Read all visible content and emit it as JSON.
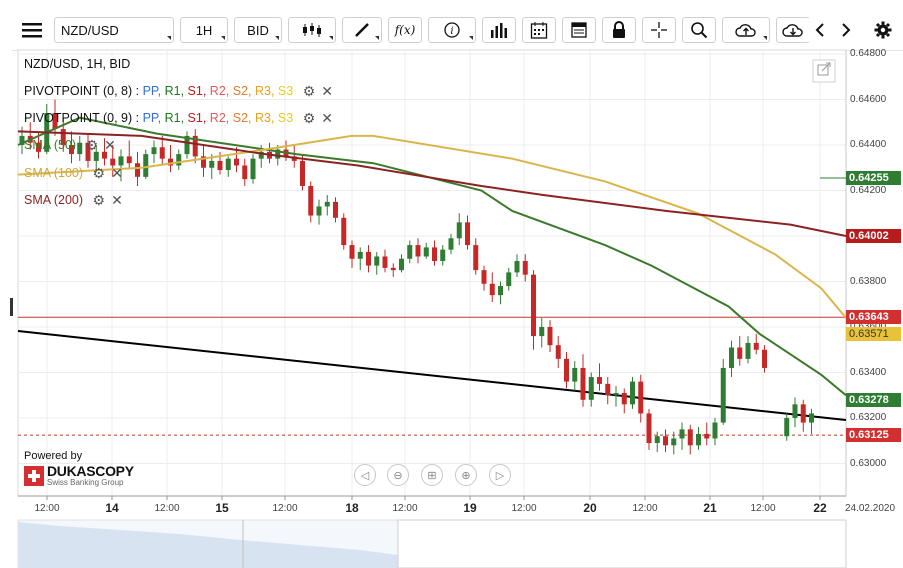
{
  "toolbar": {
    "symbol": "NZD/USD",
    "timeframe": "1H",
    "price_side": "BID",
    "function_label": "f(x)"
  },
  "legend": {
    "title": "NZD/USD, 1H, BID",
    "pivot1_name": "PIVOTPOINT (0, 8)",
    "pivot2_name": "PIVOTPOINT (0, 9)",
    "pivot_sep": ":",
    "pivot_levels": [
      "PP,",
      "R1,",
      "S1,",
      "R2,",
      "S2,",
      "R3,",
      "S3"
    ],
    "sma50": "SMA (50)",
    "sma100": "SMA (100)",
    "sma200": "SMA (200)"
  },
  "colors": {
    "candle_up": "#2e7d32",
    "candle_down": "#c62828",
    "sma50": "#3b7a2a",
    "sma100": "#d9b54a",
    "sma200": "#8b2323",
    "trendline": "#000000",
    "pivot_line": "#c0392b",
    "tag_green": "#2e7d32",
    "tag_darkred": "#b71c1c",
    "tag_red": "#d32f2f",
    "tag_yellow": "#e8c33a"
  },
  "brand": {
    "powered_by": "Powered by",
    "name": "DUKASCOPY",
    "tagline": "Swiss Banking Group"
  },
  "chart_data": {
    "type": "candlestick",
    "title": "NZD/USD, 1H, BID",
    "ylim": [
      0.629,
      0.648
    ],
    "y_ticks": [
      "0.64800",
      "0.64600",
      "0.64400",
      "0.64200",
      "0.64000",
      "0.63800",
      "0.63600",
      "0.63400",
      "0.63200",
      "0.63000"
    ],
    "x_ticks": [
      "12:00",
      "14",
      "12:00",
      "15",
      "12:00",
      "18",
      "12:00",
      "19",
      "12:00",
      "20",
      "12:00",
      "21",
      "12:00",
      "22",
      "24.02.2020"
    ],
    "price_tags": [
      {
        "label": "0.64255",
        "color": "green"
      },
      {
        "label": "0.64002",
        "color": "darkred"
      },
      {
        "label": "0.63643",
        "color": "red"
      },
      {
        "label": "0.63571",
        "color": "yellow"
      },
      {
        "label": "0.63278",
        "color": "green"
      },
      {
        "label": "0.63125",
        "color": "red"
      }
    ],
    "series": [
      {
        "name": "SMA (50)",
        "x": [
          0,
          20,
          45,
          90,
          115,
          150,
          160,
          190,
          205,
          230,
          240,
          260,
          268
        ],
        "y": [
          0.644,
          0.6452,
          0.6445,
          0.6436,
          0.6432,
          0.642,
          0.6411,
          0.6396,
          0.6387,
          0.6369,
          0.6357,
          0.6339,
          0.633
        ]
      },
      {
        "name": "SMA (100)",
        "x": [
          0,
          40,
          80,
          108,
          115,
          160,
          190,
          220,
          245,
          260,
          268
        ],
        "y": [
          0.6427,
          0.643,
          0.6438,
          0.6444,
          0.6444,
          0.6434,
          0.6424,
          0.641,
          0.6392,
          0.6377,
          0.6364
        ]
      },
      {
        "name": "SMA (200)",
        "x": [
          0,
          40,
          80,
          110,
          150,
          170,
          210,
          250,
          268
        ],
        "y": [
          0.6446,
          0.6444,
          0.6436,
          0.6431,
          0.6422,
          0.6418,
          0.6411,
          0.6405,
          0.64
        ]
      }
    ],
    "candles": [
      [
        0.644,
        0.6448,
        0.6436,
        0.6444
      ],
      [
        0.6444,
        0.645,
        0.6438,
        0.6441
      ],
      [
        0.6441,
        0.6446,
        0.6434,
        0.6437
      ],
      [
        0.6437,
        0.6458,
        0.6436,
        0.6454
      ],
      [
        0.6454,
        0.646,
        0.6444,
        0.6447
      ],
      [
        0.6447,
        0.6452,
        0.6437,
        0.644
      ],
      [
        0.644,
        0.6446,
        0.6432,
        0.6436
      ],
      [
        0.6436,
        0.6444,
        0.6433,
        0.6441
      ],
      [
        0.6441,
        0.6445,
        0.643,
        0.6433
      ],
      [
        0.6433,
        0.644,
        0.6428,
        0.6437
      ],
      [
        0.6437,
        0.6443,
        0.6431,
        0.6434
      ],
      [
        0.6434,
        0.644,
        0.6426,
        0.6431
      ],
      [
        0.6431,
        0.6438,
        0.6424,
        0.6435
      ],
      [
        0.6435,
        0.6442,
        0.643,
        0.6432
      ],
      [
        0.6432,
        0.6437,
        0.6422,
        0.6426
      ],
      [
        0.6426,
        0.6438,
        0.6425,
        0.6436
      ],
      [
        0.6436,
        0.6442,
        0.6432,
        0.6439
      ],
      [
        0.6439,
        0.6444,
        0.6431,
        0.6434
      ],
      [
        0.6434,
        0.644,
        0.6428,
        0.6431
      ],
      [
        0.6431,
        0.6438,
        0.6429,
        0.6436
      ],
      [
        0.6436,
        0.6446,
        0.6434,
        0.6444
      ],
      [
        0.6444,
        0.6447,
        0.6432,
        0.6435
      ],
      [
        0.6435,
        0.644,
        0.6426,
        0.643
      ],
      [
        0.643,
        0.6436,
        0.6425,
        0.6433
      ],
      [
        0.6433,
        0.6437,
        0.6427,
        0.6429
      ],
      [
        0.6429,
        0.6435,
        0.6426,
        0.6434
      ],
      [
        0.6434,
        0.6439,
        0.6428,
        0.6431
      ],
      [
        0.6431,
        0.6434,
        0.6422,
        0.6425
      ],
      [
        0.6425,
        0.6436,
        0.6423,
        0.6434
      ],
      [
        0.6434,
        0.644,
        0.643,
        0.6437
      ],
      [
        0.6437,
        0.6441,
        0.6432,
        0.6434
      ],
      [
        0.6434,
        0.644,
        0.6431,
        0.6438
      ],
      [
        0.6438,
        0.6442,
        0.6433,
        0.6435
      ],
      [
        0.6435,
        0.644,
        0.643,
        0.6433
      ],
      [
        0.6433,
        0.6436,
        0.642,
        0.6422
      ],
      [
        0.6422,
        0.6424,
        0.6406,
        0.6409
      ],
      [
        0.6409,
        0.6416,
        0.6405,
        0.6413
      ],
      [
        0.6413,
        0.6418,
        0.6409,
        0.6415
      ],
      [
        0.6415,
        0.6417,
        0.6406,
        0.6408
      ],
      [
        0.6408,
        0.641,
        0.6394,
        0.6396
      ],
      [
        0.6396,
        0.6398,
        0.6386,
        0.639
      ],
      [
        0.639,
        0.6395,
        0.6385,
        0.6393
      ],
      [
        0.6393,
        0.6396,
        0.6384,
        0.6387
      ],
      [
        0.6387,
        0.6393,
        0.6383,
        0.6391
      ],
      [
        0.6391,
        0.6394,
        0.6384,
        0.6386
      ],
      [
        0.6386,
        0.6388,
        0.6382,
        0.6385
      ],
      [
        0.6385,
        0.6392,
        0.6384,
        0.639
      ],
      [
        0.639,
        0.6398,
        0.6388,
        0.6396
      ],
      [
        0.6396,
        0.6399,
        0.6388,
        0.6391
      ],
      [
        0.6391,
        0.6397,
        0.639,
        0.6395
      ],
      [
        0.6395,
        0.6398,
        0.6387,
        0.6389
      ],
      [
        0.6389,
        0.6396,
        0.6387,
        0.6394
      ],
      [
        0.6394,
        0.6401,
        0.6392,
        0.6399
      ],
      [
        0.6399,
        0.641,
        0.6396,
        0.6406
      ],
      [
        0.6406,
        0.6409,
        0.6394,
        0.6396
      ],
      [
        0.6396,
        0.6399,
        0.6383,
        0.6385
      ],
      [
        0.6385,
        0.6387,
        0.6376,
        0.6379
      ],
      [
        0.6379,
        0.6384,
        0.6371,
        0.6374
      ],
      [
        0.6374,
        0.638,
        0.637,
        0.6378
      ],
      [
        0.6378,
        0.6386,
        0.6376,
        0.6384
      ],
      [
        0.6384,
        0.6392,
        0.6382,
        0.6389
      ],
      [
        0.6389,
        0.6392,
        0.638,
        0.6383
      ],
      [
        0.6383,
        0.6385,
        0.635,
        0.6356
      ],
      [
        0.6356,
        0.6364,
        0.6351,
        0.636
      ],
      [
        0.636,
        0.6363,
        0.6349,
        0.6352
      ],
      [
        0.6352,
        0.6356,
        0.6342,
        0.6346
      ],
      [
        0.6346,
        0.6349,
        0.6333,
        0.6336
      ],
      [
        0.6336,
        0.6345,
        0.6332,
        0.6342
      ],
      [
        0.6342,
        0.6348,
        0.6325,
        0.6328
      ],
      [
        0.6328,
        0.634,
        0.6325,
        0.6338
      ],
      [
        0.6338,
        0.6344,
        0.6332,
        0.6335
      ],
      [
        0.6335,
        0.6338,
        0.6326,
        0.633
      ],
      [
        0.633,
        0.6334,
        0.6325,
        0.6331
      ],
      [
        0.6331,
        0.6333,
        0.6322,
        0.6326
      ],
      [
        0.6326,
        0.6338,
        0.6324,
        0.6336
      ],
      [
        0.6336,
        0.6339,
        0.6318,
        0.6322
      ],
      [
        0.6322,
        0.6324,
        0.6306,
        0.6309
      ],
      [
        0.6309,
        0.6314,
        0.6305,
        0.6312
      ],
      [
        0.6312,
        0.6315,
        0.6305,
        0.6308
      ],
      [
        0.6308,
        0.6314,
        0.6304,
        0.6311
      ],
      [
        0.6311,
        0.6318,
        0.6306,
        0.6315
      ],
      [
        0.6315,
        0.6317,
        0.6304,
        0.6308
      ],
      [
        0.6308,
        0.6316,
        0.6306,
        0.6313
      ],
      [
        0.6313,
        0.6318,
        0.6308,
        0.6311
      ],
      [
        0.6311,
        0.632,
        0.6308,
        0.6318
      ],
      [
        0.6318,
        0.6346,
        0.6317,
        0.6342
      ],
      [
        0.6342,
        0.6354,
        0.6338,
        0.6351
      ],
      [
        0.6351,
        0.6356,
        0.6343,
        0.6346
      ],
      [
        0.6346,
        0.6356,
        0.6344,
        0.6353
      ],
      [
        0.6353,
        0.6357,
        0.6348,
        0.635
      ],
      [
        0.635,
        0.6352,
        0.634,
        0.6342
      ],
      [
        0.6312,
        0.6322,
        0.631,
        0.632
      ],
      [
        0.632,
        0.6329,
        0.6316,
        0.6326
      ],
      [
        0.6326,
        0.6328,
        0.6314,
        0.6318
      ],
      [
        0.6318,
        0.6324,
        0.6313,
        0.6322
      ]
    ]
  }
}
